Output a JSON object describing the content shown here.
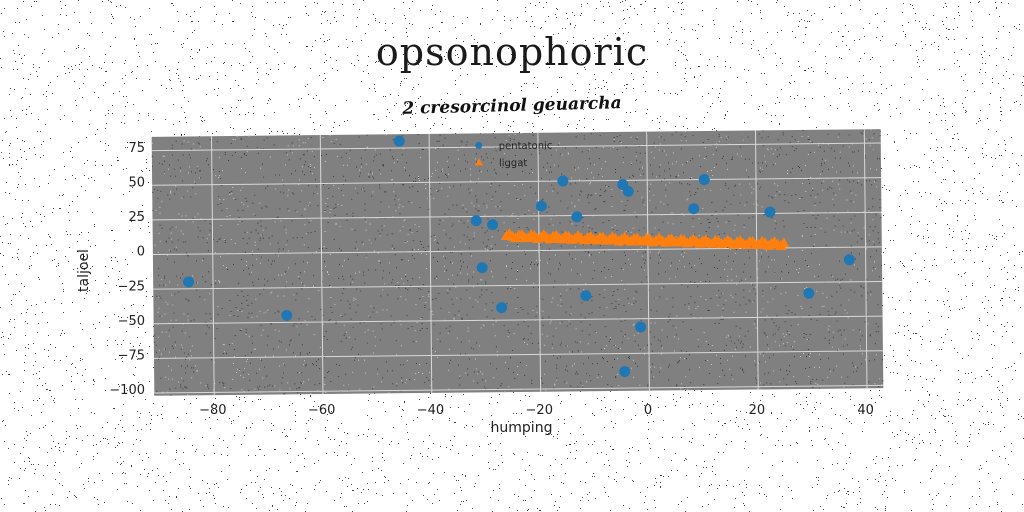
{
  "chart_data": {
    "type": "scatter",
    "title": "opsonophoric",
    "subtitle": "2 cresorcinol geuarcha",
    "xlabel": "humping",
    "ylabel": "taljoel",
    "xlim": [
      -91,
      43
    ],
    "ylim": [
      -102,
      85
    ],
    "xticks": [
      -80,
      -60,
      -40,
      -20,
      0,
      20,
      40
    ],
    "yticks": [
      75,
      50,
      25,
      0,
      -25,
      -50,
      -75,
      -100
    ],
    "tick_labels": {
      "x": [
        "−80",
        "−60",
        "−40",
        "−20",
        "0",
        "20",
        "40"
      ],
      "y": [
        "75",
        "50",
        "25",
        "0",
        "−25",
        "−50",
        "−75",
        "−100"
      ]
    },
    "grid": true,
    "legend_position": "top-center",
    "background_color": "#808080",
    "series": [
      {
        "name": "pentatonic",
        "marker": "circle",
        "color": "#1f77b4",
        "points": [
          [
            -45.5,
            80
          ],
          [
            -84.5,
            -20
          ],
          [
            -66.5,
            -45
          ],
          [
            -31.5,
            22
          ],
          [
            -28.5,
            19
          ],
          [
            -30.5,
            -12
          ],
          [
            -27,
            -41
          ],
          [
            -19.5,
            32
          ],
          [
            -15.5,
            50
          ],
          [
            -13,
            24
          ],
          [
            -11.5,
            -33
          ],
          [
            -4.5,
            47
          ],
          [
            -3.5,
            42
          ],
          [
            8.5,
            29
          ],
          [
            10.5,
            50
          ],
          [
            22.5,
            26
          ],
          [
            37,
            -9
          ],
          [
            29.5,
            -33
          ],
          [
            -1.5,
            -56
          ],
          [
            -4.5,
            -88
          ]
        ]
      },
      {
        "name": "liggat",
        "marker": "triangle",
        "color": "#ff7f0e",
        "start": [
          -26,
          11
        ],
        "end": [
          25,
          3
        ],
        "count": 90
      }
    ]
  }
}
